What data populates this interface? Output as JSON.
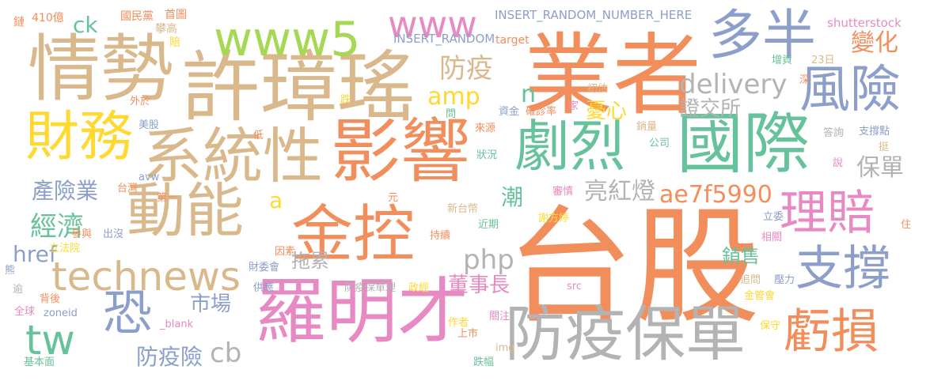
{
  "palette": {
    "orange": "#f28e5c",
    "tan": "#d9b98c",
    "green": "#66c29a",
    "blue": "#8c9fca",
    "pink": "#e78ac3",
    "yellow": "#ffd92f",
    "lime": "#a6d854",
    "gray": "#b3b3b3"
  },
  "words": [
    {
      "text": "台股",
      "color": "orange"
    },
    {
      "text": "業者",
      "color": "orange"
    },
    {
      "text": "許璋瑤",
      "color": "tan"
    },
    {
      "text": "情勢",
      "color": "tan"
    },
    {
      "text": "影響",
      "color": "orange"
    },
    {
      "text": "國際",
      "color": "green"
    },
    {
      "text": "羅明才",
      "color": "pink"
    },
    {
      "text": "系統性",
      "color": "tan"
    },
    {
      "text": "金控",
      "color": "orange"
    },
    {
      "text": "防疫保單",
      "color": "gray"
    },
    {
      "text": "動能",
      "color": "tan"
    },
    {
      "text": "財務",
      "color": "yellow"
    },
    {
      "text": "劇烈",
      "color": "green"
    },
    {
      "text": "www5",
      "color": "lime"
    },
    {
      "text": "多半",
      "color": "blue"
    },
    {
      "text": "風險",
      "color": "blue"
    },
    {
      "text": "理賠",
      "color": "pink"
    },
    {
      "text": "支撐",
      "color": "blue"
    },
    {
      "text": "虧損",
      "color": "orange"
    },
    {
      "text": "恐",
      "color": "blue"
    },
    {
      "text": "technews",
      "color": "tan"
    },
    {
      "text": "www",
      "color": "pink"
    },
    {
      "text": "tw",
      "color": "green"
    },
    {
      "text": "delivery",
      "color": "gray"
    },
    {
      "text": "ae7f5990",
      "color": "orange"
    },
    {
      "text": "php",
      "color": "gray"
    },
    {
      "text": "防疫",
      "color": "tan"
    },
    {
      "text": "amp",
      "color": "yellow"
    },
    {
      "text": "變化",
      "color": "orange"
    },
    {
      "text": "保單",
      "color": "gray"
    },
    {
      "text": "經濟",
      "color": "green"
    },
    {
      "text": "亮紅燈",
      "color": "gray"
    },
    {
      "text": "產險業",
      "color": "blue"
    },
    {
      "text": "憂心",
      "color": "yellow"
    },
    {
      "text": "證交所",
      "color": "gray"
    },
    {
      "text": "潮",
      "color": "green"
    },
    {
      "text": "cb",
      "color": "gray"
    },
    {
      "text": "防疫險",
      "color": "blue"
    },
    {
      "text": "董事長",
      "color": "pink"
    },
    {
      "text": "市場",
      "color": "blue"
    },
    {
      "text": "拖累",
      "color": "gray"
    },
    {
      "text": "銷售",
      "color": "green"
    },
    {
      "text": "href",
      "color": "blue"
    },
    {
      "text": "ck",
      "color": "green"
    },
    {
      "text": "n",
      "color": "green"
    },
    {
      "text": "a",
      "color": "yellow"
    },
    {
      "text": "INSERT_RANDOM_NUMBER_HERE",
      "color": "blue"
    },
    {
      "text": "INSERT_RANDOM",
      "color": "blue"
    },
    {
      "text": "shutterstock",
      "color": "pink"
    },
    {
      "text": "410億",
      "color": "orange"
    },
    {
      "text": "國民黨",
      "color": "orange"
    },
    {
      "text": "首圖",
      "color": "orange"
    },
    {
      "text": "攀高",
      "color": "tan"
    },
    {
      "text": "target",
      "color": "orange"
    },
    {
      "text": "賠",
      "color": "yellow"
    },
    {
      "text": "鏈",
      "color": "orange"
    },
    {
      "text": "外於",
      "color": "orange"
    },
    {
      "text": "美股",
      "color": "blue"
    },
    {
      "text": "跌",
      "color": "yellow"
    },
    {
      "text": "資金",
      "color": "blue"
    },
    {
      "text": "確診率",
      "color": "orange"
    },
    {
      "text": "初估",
      "color": "tan"
    },
    {
      "text": "家",
      "color": "pink"
    },
    {
      "text": "問",
      "color": "green"
    },
    {
      "text": "來源",
      "color": "orange"
    },
    {
      "text": "低",
      "color": "orange"
    },
    {
      "text": "狀況",
      "color": "green"
    },
    {
      "text": "銷量",
      "color": "tan"
    },
    {
      "text": "公司",
      "color": "green"
    },
    {
      "text": "答詢",
      "color": "gray"
    },
    {
      "text": "支撐點",
      "color": "blue"
    },
    {
      "text": "挺",
      "color": "tan"
    },
    {
      "text": "說",
      "color": "pink"
    },
    {
      "text": "增資",
      "color": "green"
    },
    {
      "text": "23日",
      "color": "tan"
    },
    {
      "text": "深",
      "color": "orange"
    },
    {
      "text": "avw",
      "color": "blue"
    },
    {
      "text": "台灣",
      "color": "orange"
    },
    {
      "text": "第一",
      "color": "orange"
    },
    {
      "text": "元",
      "color": "orange"
    },
    {
      "text": "審慎",
      "color": "pink"
    },
    {
      "text": "新台幣",
      "color": "tan"
    },
    {
      "text": "謝方婷",
      "color": "yellow"
    },
    {
      "text": "近期",
      "color": "green"
    },
    {
      "text": "立委",
      "color": "blue"
    },
    {
      "text": "參與",
      "color": "orange"
    },
    {
      "text": "出沒",
      "color": "blue"
    },
    {
      "text": "立法院",
      "color": "yellow"
    },
    {
      "text": "持續",
      "color": "orange"
    },
    {
      "text": "因素",
      "color": "orange"
    },
    {
      "text": "財委會",
      "color": "blue"
    },
    {
      "text": "相關",
      "color": "pink"
    },
    {
      "text": "住",
      "color": "orange"
    },
    {
      "text": "熊",
      "color": "blue"
    },
    {
      "text": "逾",
      "color": "gray"
    },
    {
      "text": "供應",
      "color": "blue"
    },
    {
      "text": "防疫保單理",
      "color": "gray"
    },
    {
      "text": "政經",
      "color": "yellow"
    },
    {
      "text": "src",
      "color": "pink"
    },
    {
      "text": "追問",
      "color": "tan"
    },
    {
      "text": "壓力",
      "color": "blue"
    },
    {
      "text": "金管會",
      "color": "yellow"
    },
    {
      "text": "背後",
      "color": "orange"
    },
    {
      "text": "全球",
      "color": "pink"
    },
    {
      "text": "zoneid",
      "color": "blue"
    },
    {
      "text": "_blank",
      "color": "pink"
    },
    {
      "text": "作者",
      "color": "yellow"
    },
    {
      "text": "上市",
      "color": "orange"
    },
    {
      "text": "關注",
      "color": "pink"
    },
    {
      "text": "img",
      "color": "tan"
    },
    {
      "text": "保守",
      "color": "yellow"
    },
    {
      "text": "基本面",
      "color": "green"
    },
    {
      "text": "跌幅",
      "color": "green"
    }
  ]
}
